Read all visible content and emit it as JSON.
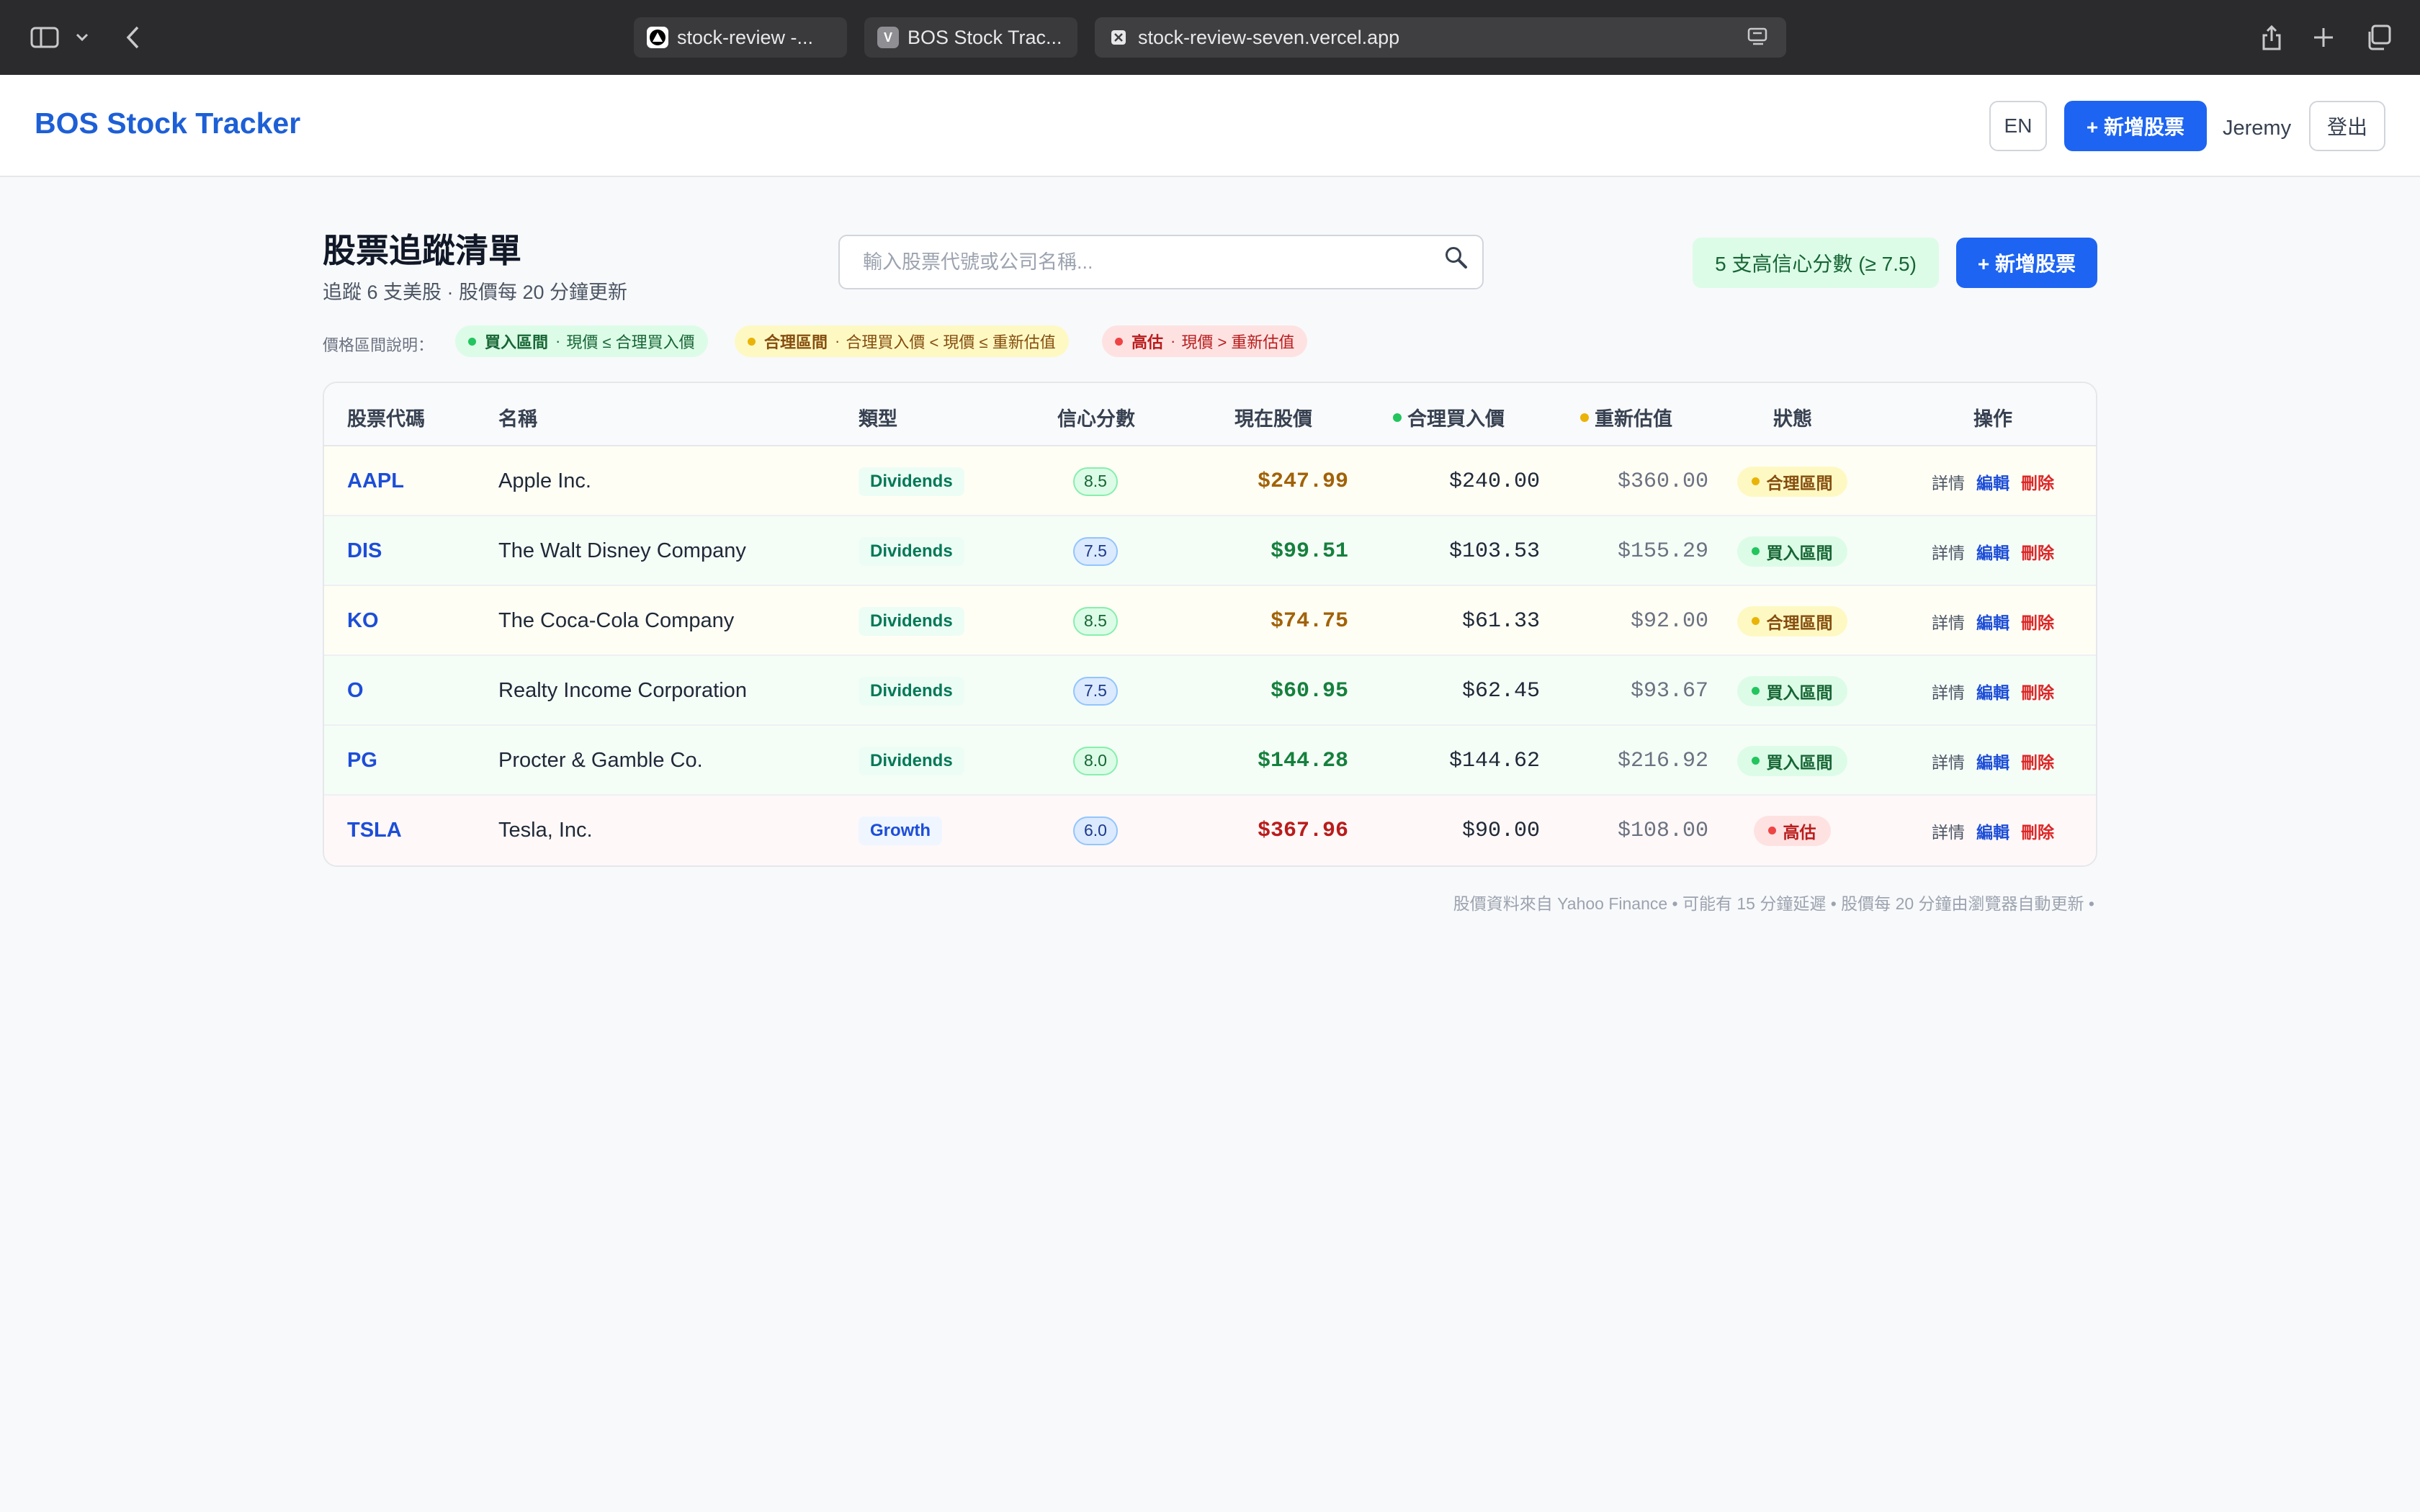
{
  "browser": {
    "tabs": [
      {
        "title": "stock-review -...",
        "favicon": "vercel-triangle-icon"
      },
      {
        "title": "BOS Stock Trac...",
        "favicon_letter": "V"
      },
      {
        "title": "stock-review-seven.vercel.app",
        "favicon": "close-box-icon"
      }
    ]
  },
  "header": {
    "brand": "BOS Stock Tracker",
    "lang_button": "EN",
    "add_button": "+ 新增股票",
    "user": "Jeremy",
    "logout_button": "登出"
  },
  "main": {
    "title": "股票追蹤清單",
    "subtitle": "追蹤 6 支美股 · 股價每 20 分鐘更新",
    "search_placeholder": "輸入股票代號或公司名稱...",
    "high_conf_badge": "5 支高信心分數 (≥ 7.5)",
    "add_button": "+ 新增股票",
    "legend_label": "價格區間說明：",
    "legend": [
      {
        "name": "買入區間",
        "desc": "現價 ≤ 合理買入價",
        "color": "#22c55e"
      },
      {
        "name": "合理區間",
        "desc": "合理買入價 < 現價 ≤ 重新估值",
        "color": "#eab308"
      },
      {
        "name": "高估",
        "desc": "現價 > 重新估值",
        "color": "#ef4444"
      }
    ]
  },
  "table": {
    "headers": {
      "ticker": "股票代碼",
      "name": "名稱",
      "type": "類型",
      "score": "信心分數",
      "price": "現在股價",
      "fair_buy": "合理買入價",
      "revalue": "重新估值",
      "status": "狀態",
      "actions": "操作"
    },
    "action_labels": {
      "detail": "詳情",
      "edit": "編輯",
      "delete": "刪除"
    },
    "rows": [
      {
        "ticker": "AAPL",
        "name": "Apple Inc.",
        "type": "Dividends",
        "score": "8.5",
        "price": "$247.99",
        "fair_buy": "$240.00",
        "revalue": "$360.00",
        "status": "合理區間",
        "zone": "fair"
      },
      {
        "ticker": "DIS",
        "name": "The Walt Disney Company",
        "type": "Dividends",
        "score": "7.5",
        "price": "$99.51",
        "fair_buy": "$103.53",
        "revalue": "$155.29",
        "status": "買入區間",
        "zone": "buy"
      },
      {
        "ticker": "KO",
        "name": "The Coca-Cola Company",
        "type": "Dividends",
        "score": "8.5",
        "price": "$74.75",
        "fair_buy": "$61.33",
        "revalue": "$92.00",
        "status": "合理區間",
        "zone": "fair"
      },
      {
        "ticker": "O",
        "name": "Realty Income Corporation",
        "type": "Dividends",
        "score": "7.5",
        "price": "$60.95",
        "fair_buy": "$62.45",
        "revalue": "$93.67",
        "status": "買入區間",
        "zone": "buy"
      },
      {
        "ticker": "PG",
        "name": "Procter & Gamble Co.",
        "type": "Dividends",
        "score": "8.0",
        "price": "$144.28",
        "fair_buy": "$144.62",
        "revalue": "$216.92",
        "status": "買入區間",
        "zone": "buy"
      },
      {
        "ticker": "TSLA",
        "name": "Tesla, Inc.",
        "type": "Growth",
        "score": "6.0",
        "price": "$367.96",
        "fair_buy": "$90.00",
        "revalue": "$108.00",
        "status": "高估",
        "zone": "high"
      }
    ]
  },
  "footer_note": "股價資料來自 Yahoo Finance • 可能有 15 分鐘延遲 • 股價每 20 分鐘由瀏覽器自動更新 •",
  "colors": {
    "buy": "#22c55e",
    "fair": "#eab308",
    "high": "#ef4444",
    "accent": "#1d64f2",
    "price_buy": "#15803d",
    "price_fair": "#a16207",
    "price_high": "#b91c1c",
    "row_buy": "#f5fdf7",
    "row_fair": "#fffef5",
    "row_high": "#fff8f8"
  }
}
